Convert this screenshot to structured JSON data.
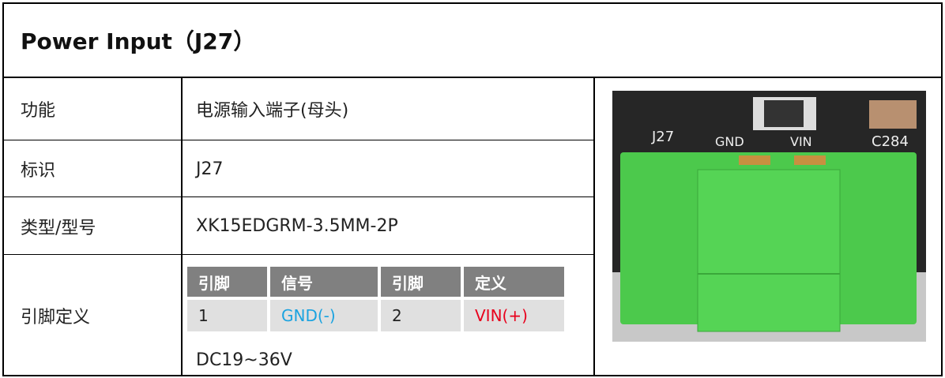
{
  "header": {
    "title": "Power Input（J27）"
  },
  "table": {
    "rows": [
      [
        "功能",
        "电源输入端子(母头)"
      ],
      [
        "标识",
        "J27"
      ],
      [
        "类型/型号",
        "XK15EDGRM-3.5MM-2P"
      ],
      [
        "引脚定义"
      ]
    ]
  },
  "pin_table": {
    "header": [
      "引脚",
      "信号",
      "引脚",
      "定义"
    ],
    "rows": [
      [
        "1",
        "GND(-)",
        "2",
        "VIN(+)"
      ]
    ]
  },
  "note": "DC19~36V",
  "photo": {
    "labels": [
      "J27",
      "GND",
      "VIN",
      "C284"
    ]
  }
}
